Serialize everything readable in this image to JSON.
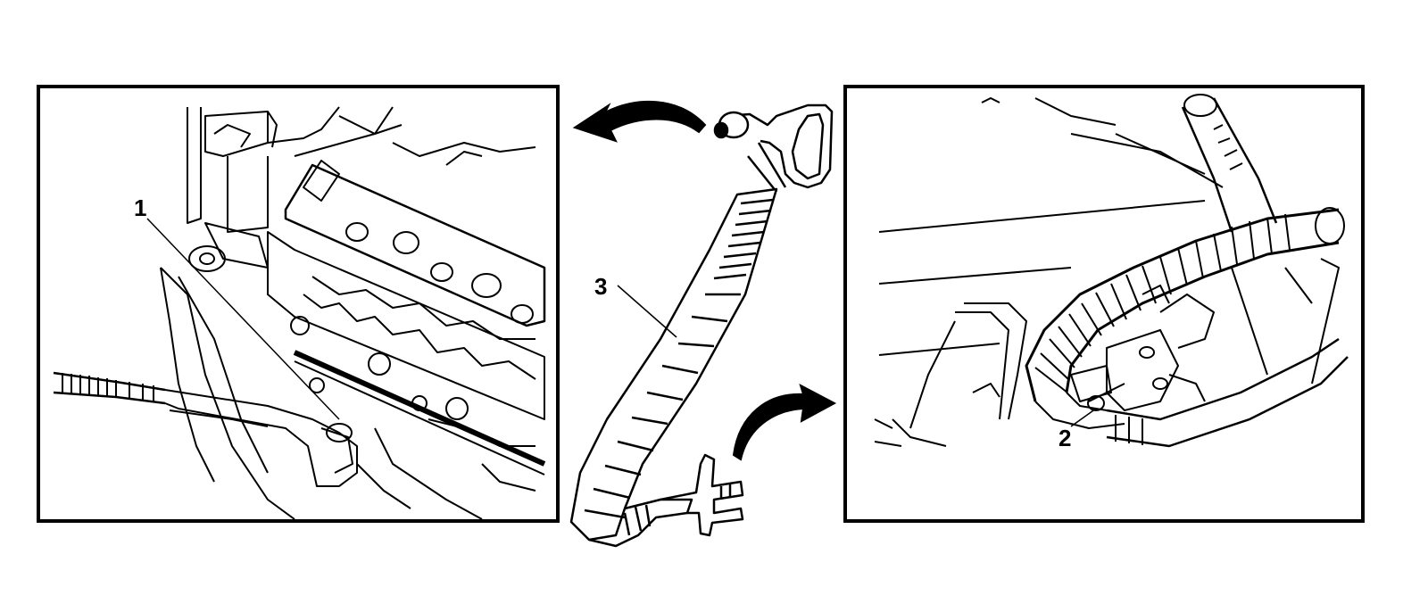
{
  "colors": {
    "ink": "#000000",
    "paper": "#ffffff",
    "frame": "#000000"
  },
  "panels": {
    "left": {
      "callout": "1"
    },
    "right": {
      "callout": "2"
    }
  },
  "center": {
    "callout": "3"
  },
  "arrows": [
    {
      "name": "arrow-to-left-panel",
      "icon": "curved-arrow-left-icon"
    },
    {
      "name": "arrow-to-right-panel",
      "icon": "curved-arrow-right-icon"
    }
  ]
}
